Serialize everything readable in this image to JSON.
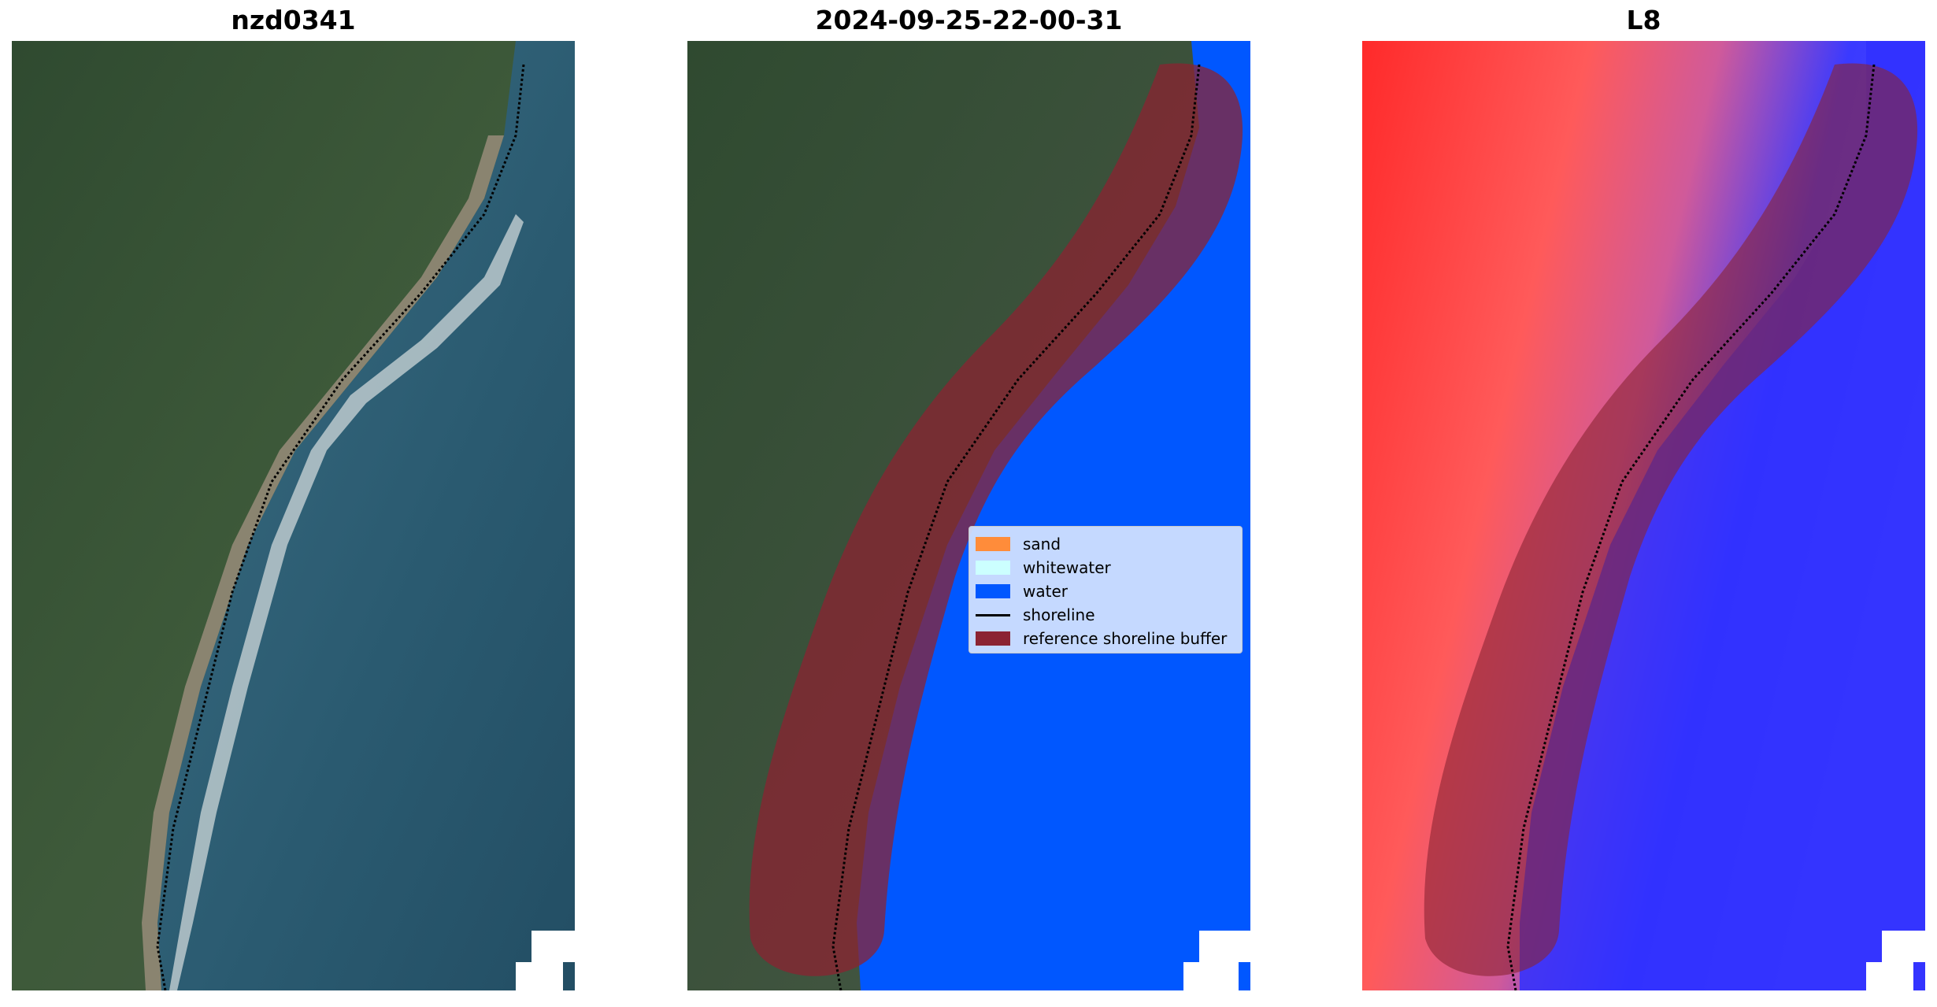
{
  "panels": [
    {
      "title": "nzd0341"
    },
    {
      "title": "2024-09-25-22-00-31"
    },
    {
      "title": "L8"
    }
  ],
  "legend": {
    "items": [
      {
        "label": "sand",
        "color": "#ff8c3a",
        "kind": "patch"
      },
      {
        "label": "whitewater",
        "color": "#ccffff",
        "kind": "patch"
      },
      {
        "label": "water",
        "color": "#0057ff",
        "kind": "patch"
      },
      {
        "label": "shoreline",
        "color": "#000000",
        "kind": "line"
      },
      {
        "label": "reference shoreline buffer",
        "color": "#8b2332",
        "kind": "patch"
      }
    ]
  },
  "colors": {
    "land": "#3d4d38",
    "ocean": "#2f5f72",
    "water_class": "#0057ff",
    "buffer": "#8b2332",
    "hot": "#ff3a3a",
    "cold": "#2a2aff"
  }
}
